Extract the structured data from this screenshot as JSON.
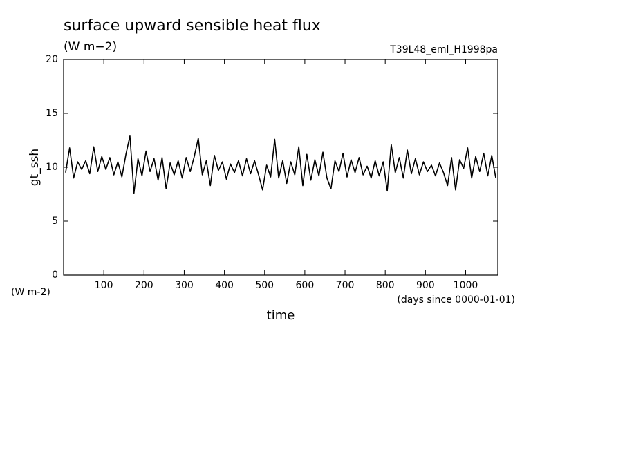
{
  "chart_data": {
    "type": "line",
    "title": "surface upward sensible heat flux",
    "subtitle": "(W m−2)",
    "annotation": "T39L48_eml_H1998pa",
    "y_label": "gt_ssh",
    "y_unit": "(W m-2)",
    "x_label": "time",
    "x_unit": "(days since 0000-01-01)",
    "xlim": [
      0,
      1080
    ],
    "ylim": [
      0,
      20
    ],
    "xticks": [
      100,
      200,
      300,
      400,
      500,
      600,
      700,
      800,
      900,
      1000
    ],
    "yticks": [
      0,
      5,
      10,
      15,
      20
    ],
    "x": [
      5,
      15,
      25,
      35,
      45,
      55,
      65,
      75,
      85,
      95,
      105,
      115,
      125,
      135,
      145,
      155,
      165,
      175,
      185,
      195,
      205,
      215,
      225,
      235,
      245,
      255,
      265,
      275,
      285,
      295,
      305,
      315,
      325,
      335,
      345,
      355,
      365,
      375,
      385,
      395,
      405,
      415,
      425,
      435,
      445,
      455,
      465,
      475,
      485,
      495,
      505,
      515,
      525,
      535,
      545,
      555,
      565,
      575,
      585,
      595,
      605,
      615,
      625,
      635,
      645,
      655,
      665,
      675,
      685,
      695,
      705,
      715,
      725,
      735,
      745,
      755,
      765,
      775,
      785,
      795,
      805,
      815,
      825,
      835,
      845,
      855,
      865,
      875,
      885,
      895,
      905,
      915,
      925,
      935,
      945,
      955,
      965,
      975,
      985,
      995,
      1005,
      1015,
      1025,
      1035,
      1045,
      1055,
      1065,
      1075
    ],
    "series": [
      {
        "color": "#000000",
        "values": [
          9.5,
          11.8,
          9.0,
          10.5,
          9.8,
          10.6,
          9.4,
          11.9,
          9.6,
          11.0,
          9.8,
          10.9,
          9.3,
          10.5,
          9.1,
          11.2,
          12.9,
          7.6,
          10.8,
          9.2,
          11.5,
          9.6,
          10.8,
          8.8,
          10.9,
          8.0,
          10.4,
          9.3,
          10.6,
          9.0,
          10.9,
          9.6,
          11.0,
          12.7,
          9.3,
          10.6,
          8.3,
          11.1,
          9.7,
          10.5,
          8.9,
          10.3,
          9.5,
          10.6,
          9.2,
          10.8,
          9.4,
          10.6,
          9.3,
          7.9,
          10.2,
          9.1,
          12.6,
          9.0,
          10.6,
          8.5,
          10.5,
          9.3,
          11.9,
          8.3,
          11.2,
          8.8,
          10.7,
          9.2,
          11.4,
          9.0,
          8.0,
          10.6,
          9.6,
          11.3,
          9.1,
          10.7,
          9.5,
          10.9,
          9.3,
          10.1,
          9.0,
          10.6,
          9.2,
          10.5,
          7.8,
          12.1,
          9.5,
          10.9,
          9.0,
          11.6,
          9.4,
          10.8,
          9.3,
          10.5,
          9.6,
          10.2,
          9.2,
          10.4,
          9.5,
          8.3,
          10.9,
          7.9,
          10.7,
          9.9,
          11.8,
          9.0,
          11.0,
          9.6,
          11.3,
          9.2,
          11.1,
          9.0
        ]
      }
    ]
  }
}
